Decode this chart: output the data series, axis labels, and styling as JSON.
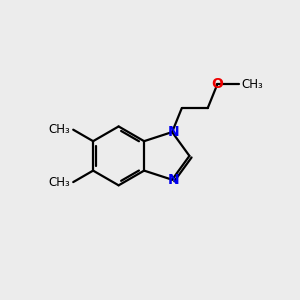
{
  "background_color": "#ececec",
  "bond_color": "#000000",
  "N_color": "#0000ee",
  "O_color": "#ee0000",
  "font_size": 10,
  "linewidth": 1.6,
  "figsize": [
    3.0,
    3.0
  ],
  "dpi": 100,
  "xlim": [
    0,
    10
  ],
  "ylim": [
    0,
    10
  ]
}
